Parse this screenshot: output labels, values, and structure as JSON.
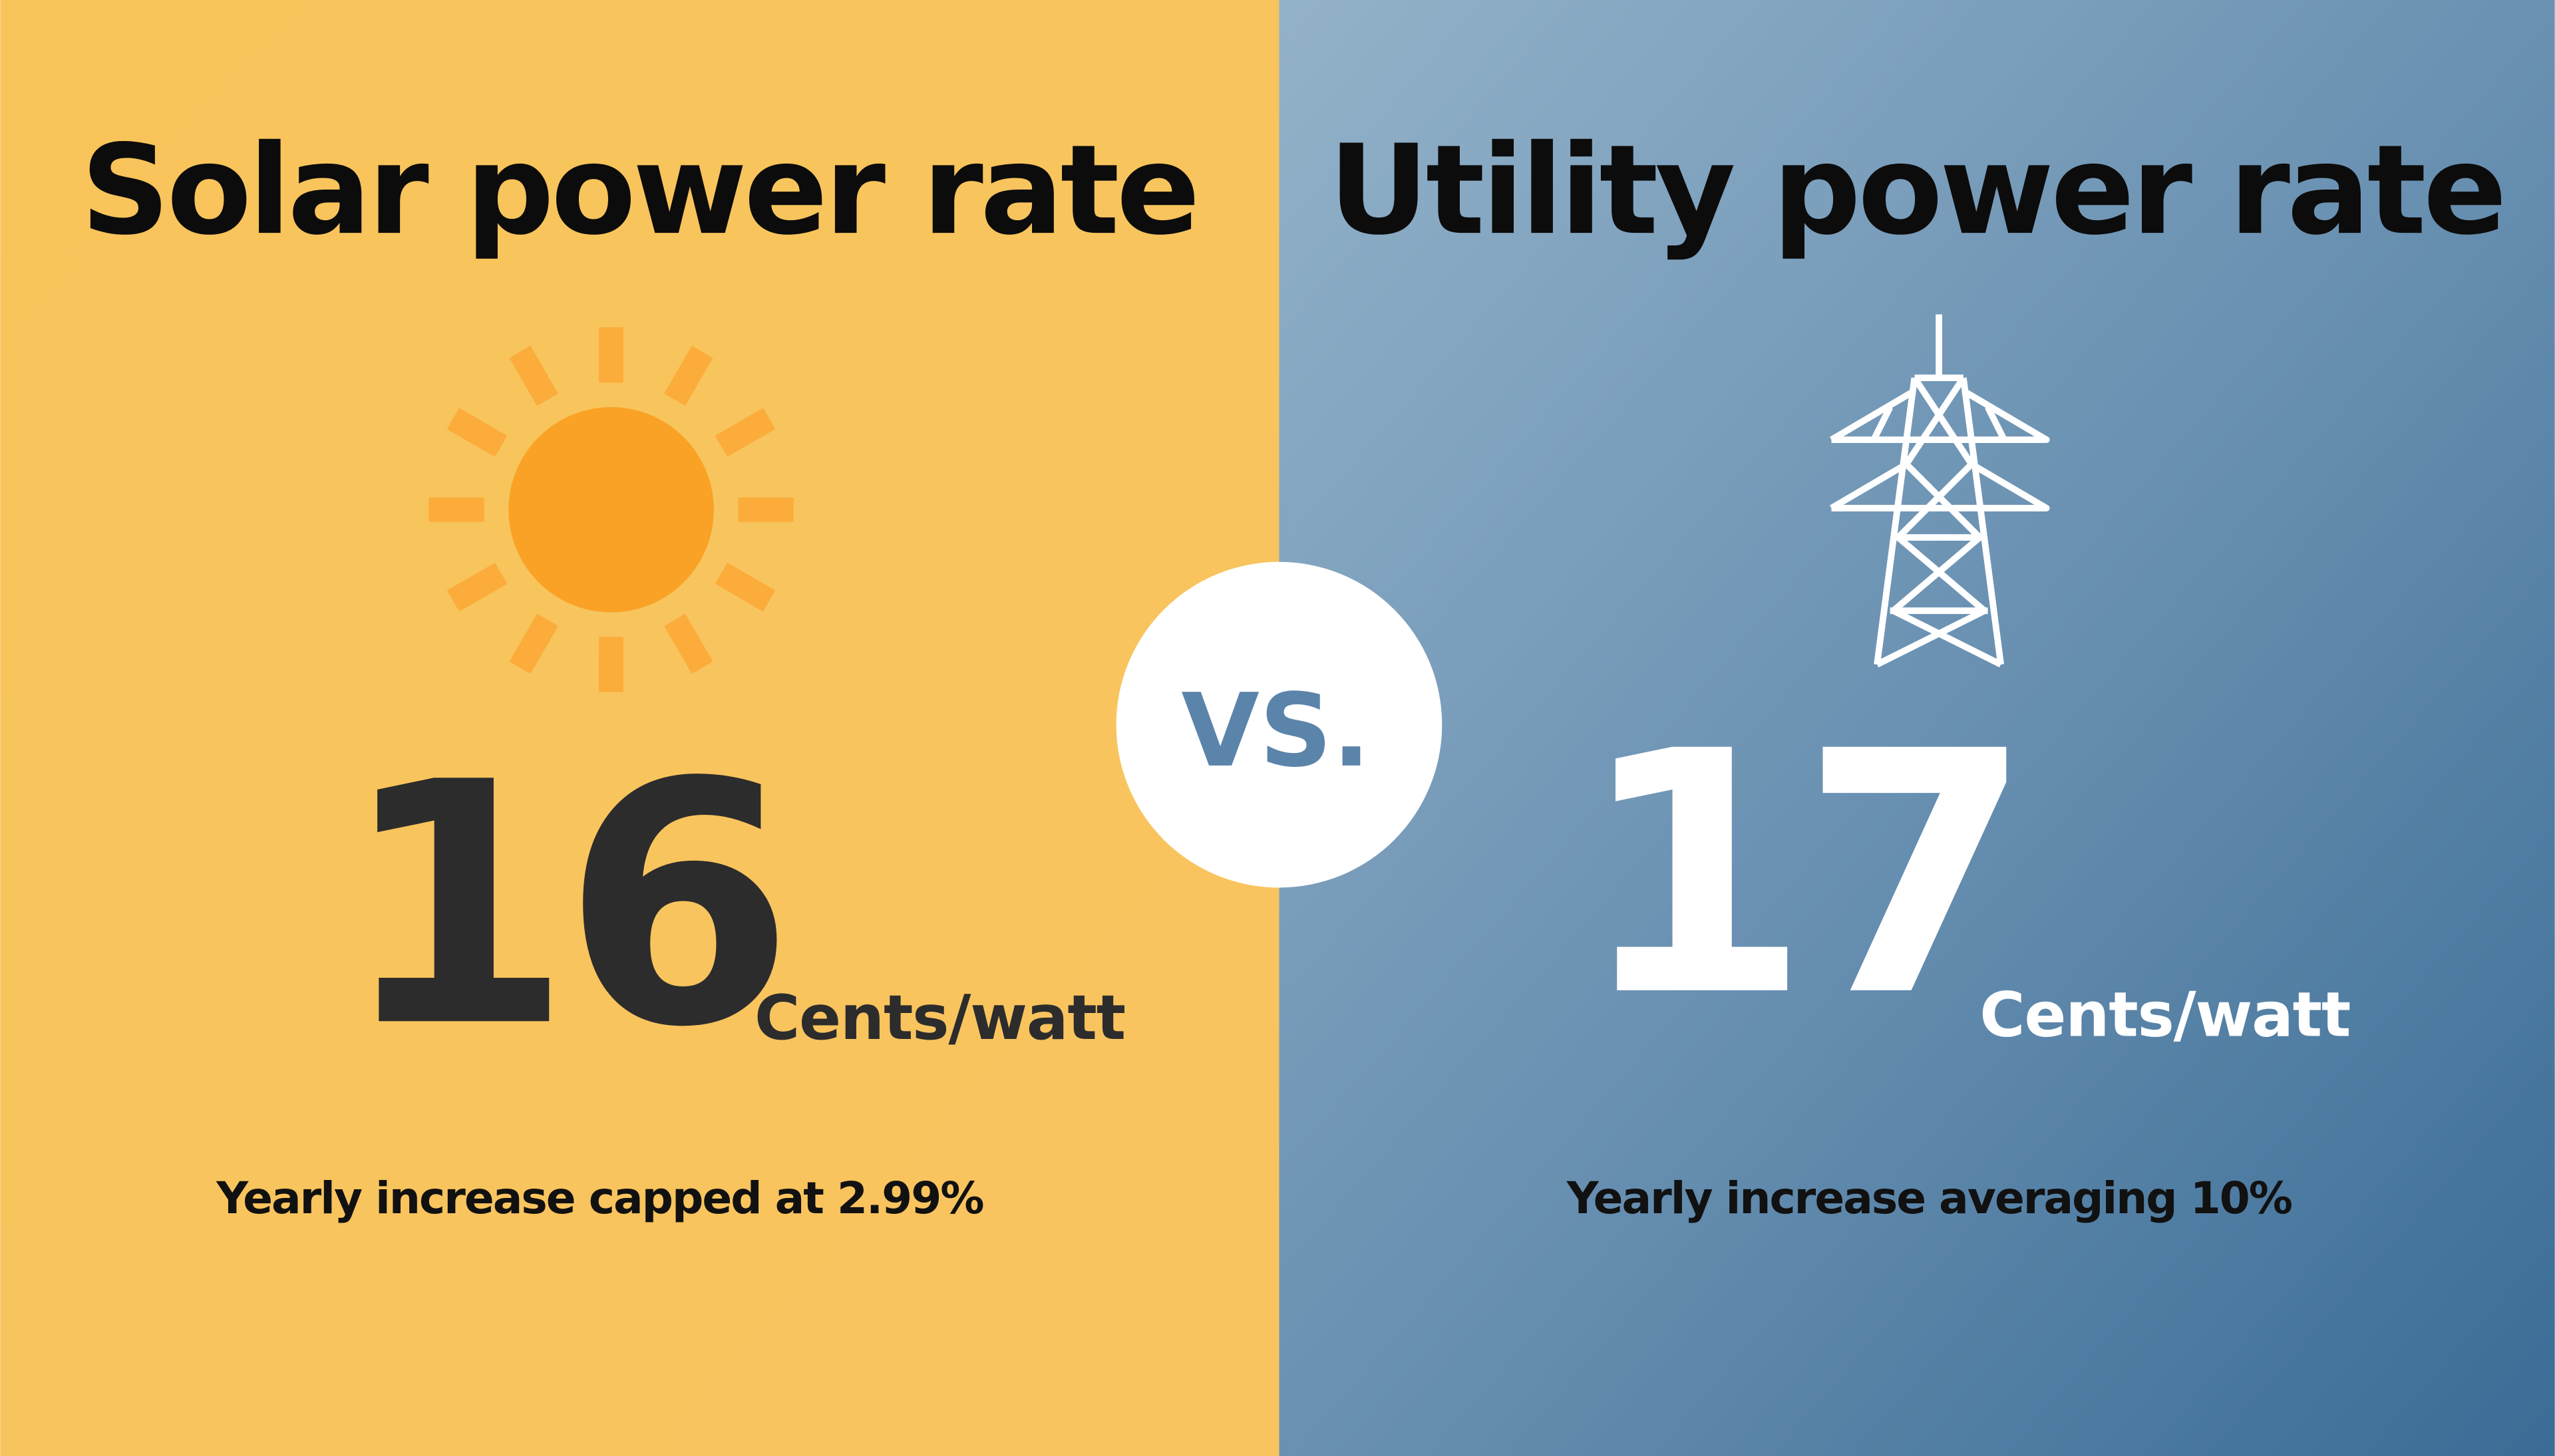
{
  "left": {
    "title": "Solar power rate",
    "value": "16",
    "unit": "Cents/watt",
    "note": "Yearly increase capped at 2.99%"
  },
  "vs": "VS.",
  "right": {
    "title": "Utility power rate",
    "value": "17",
    "unit": "Cents/watt",
    "note": "Yearly increase averaging 10%"
  }
}
